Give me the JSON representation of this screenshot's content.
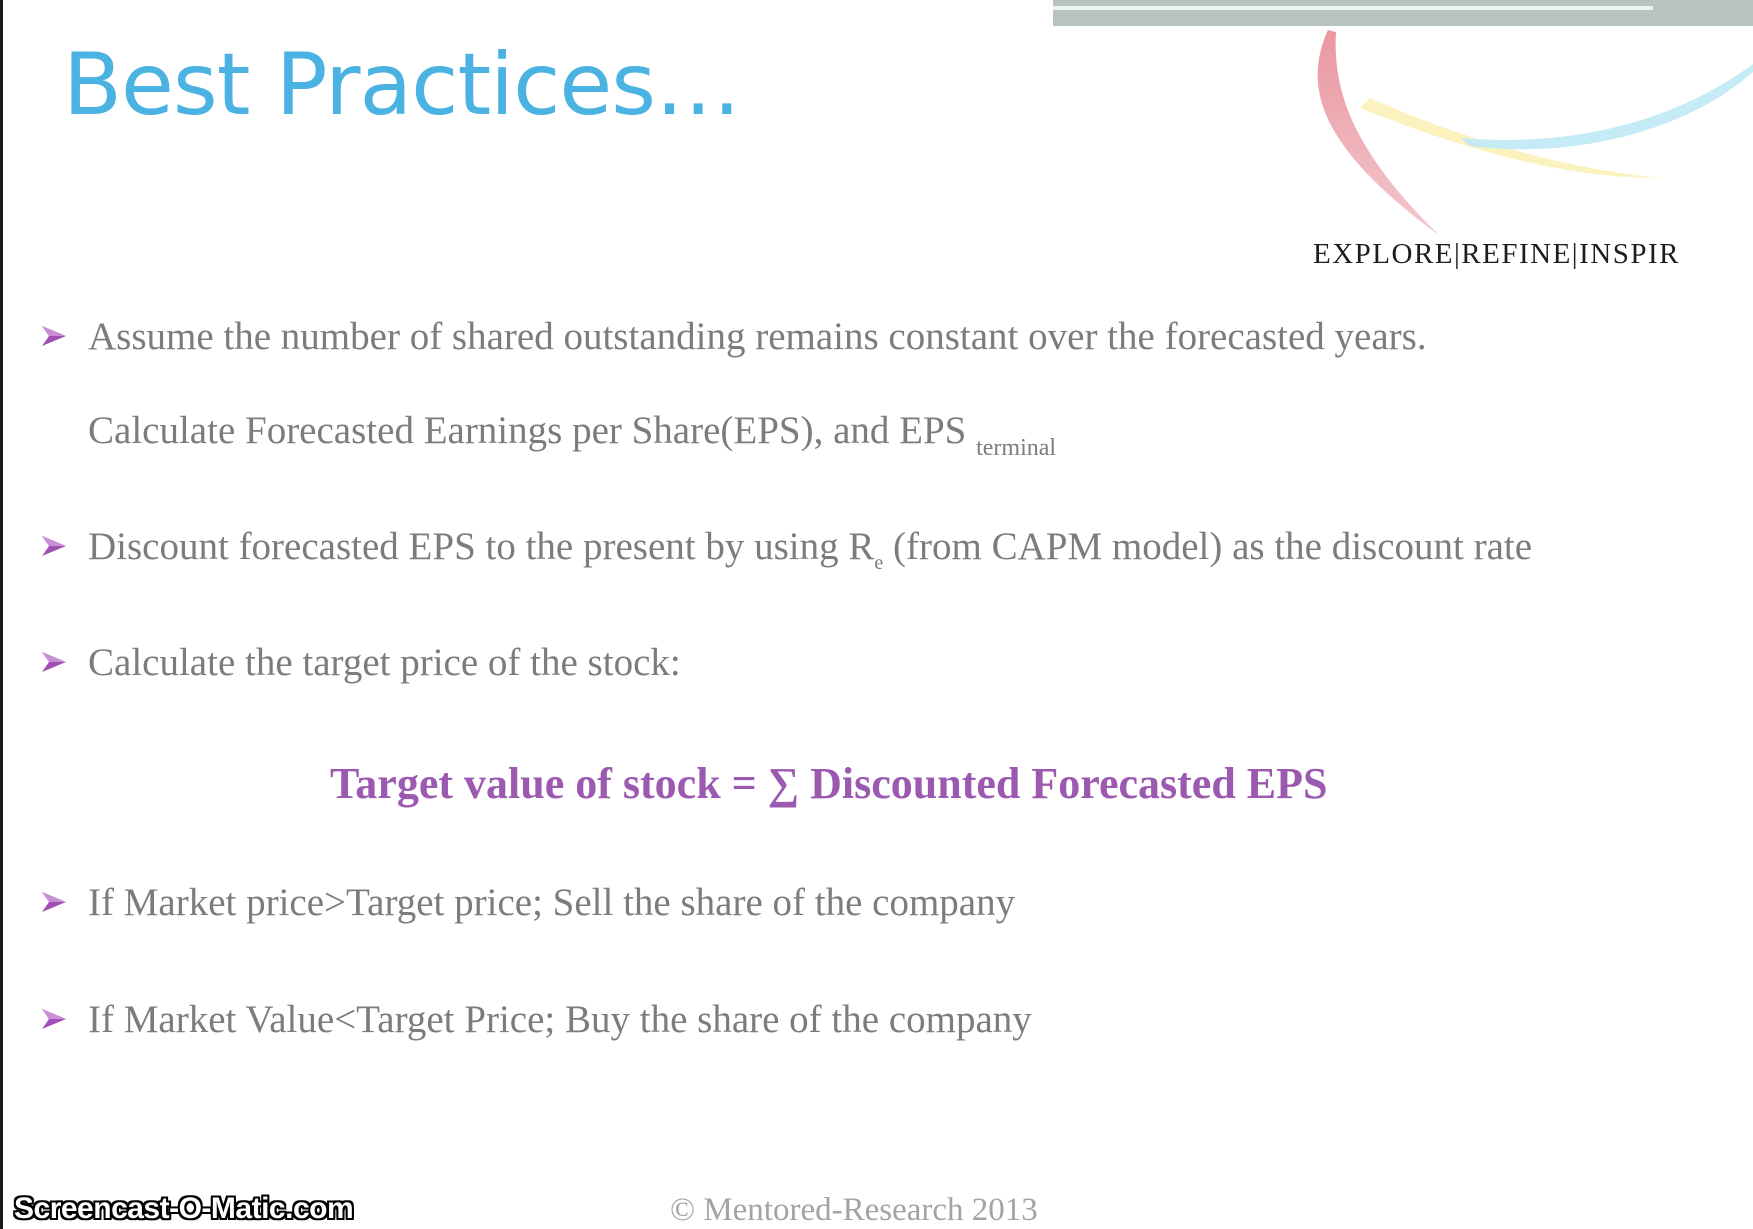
{
  "slide": {
    "title": "Best Practices…",
    "tagline": "EXPLORE|REFINE|INSPIR",
    "bullets": {
      "assume": "Assume the number of shared outstanding remains constant over the forecasted years.",
      "calculate_main": "Calculate Forecasted Earnings per Share(EPS), and EPS ",
      "calculate_sub": "terminal",
      "discount_pre": "Discount forecasted EPS to the present by using R",
      "discount_sub": "e",
      "discount_post": " (from CAPM model) as the discount rate",
      "target": "Calculate the target price of the stock:",
      "sell": "If Market price>Target price; Sell the share of the company",
      "buy": "If Market Value<Target Price; Buy the share of the company"
    },
    "formula": "Target value of stock = ∑ Discounted Forecasted EPS",
    "footer": "© Mentored-Research 2013"
  },
  "overlay": {
    "watermark": "Screencast-O-Matic.com"
  },
  "colors": {
    "title": "#4ab3e1",
    "body_text": "#7c7c7c",
    "formula": "#9b59b0",
    "bullet_arrow": "#a24fb5",
    "footer": "#a3a3a3"
  },
  "icons": {
    "bullet": "arrow-bullet-icon",
    "logo": "swoosh-logo"
  }
}
